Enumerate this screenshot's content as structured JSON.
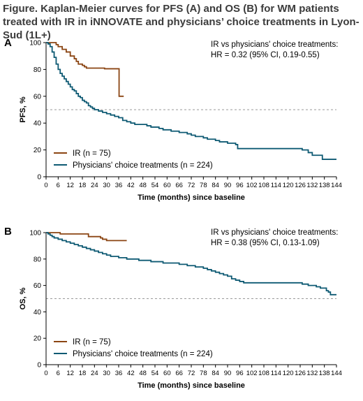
{
  "figure": {
    "title": "Figure. Kaplan-Meier curves for PFS (A) and OS (B) for WM patients treated with IR in iNNOVATE and physicians’ choice treatments in Lyon-Sud (1L+)"
  },
  "colors": {
    "ir": "#8b4513",
    "pc": "#0e5a73",
    "ref": "#999999",
    "axis": "#000000"
  },
  "chart_data": [
    {
      "panel_label": "A",
      "type": "line",
      "step": true,
      "xlabel": "Time (months) since baseline",
      "ylabel": "PFS, %",
      "xlim": [
        0,
        144
      ],
      "ylim": [
        0,
        100
      ],
      "xticks": [
        "0",
        "6",
        "12",
        "18",
        "24",
        "30",
        "36",
        "42",
        "48",
        "54",
        "60",
        "66",
        "72",
        "78",
        "84",
        "90",
        "96",
        "102",
        "108",
        "114",
        "120",
        "126",
        "132",
        "138",
        "144"
      ],
      "yticks": [
        "0",
        "20",
        "40",
        "60",
        "80",
        "100"
      ],
      "reference_line": 50,
      "annotation": [
        "IR vs physicians' choice treatments:",
        "HR = 0.32 (95% CI, 0.19-0.55)"
      ],
      "legend_position": "bottom-left",
      "series": [
        {
          "name": "IR (n = 75)",
          "color_key": "ir",
          "points": [
            [
              0,
              100
            ],
            [
              4,
              100
            ],
            [
              5,
              98.5
            ],
            [
              6,
              97
            ],
            [
              8,
              95
            ],
            [
              10,
              93
            ],
            [
              12,
              90
            ],
            [
              14,
              88
            ],
            [
              15,
              86
            ],
            [
              16,
              84
            ],
            [
              18,
              83
            ],
            [
              19,
              82
            ],
            [
              20,
              81
            ],
            [
              26,
              81
            ],
            [
              29,
              80.5
            ],
            [
              36,
              80.5
            ],
            [
              36.2,
              60
            ],
            [
              38.5,
              60
            ]
          ]
        },
        {
          "name": "Physicians' choice treatments (n = 224)",
          "color_key": "pc",
          "points": [
            [
              0,
              100
            ],
            [
              1,
              99
            ],
            [
              2,
              97
            ],
            [
              3,
              93
            ],
            [
              4,
              89
            ],
            [
              5,
              84
            ],
            [
              6,
              80
            ],
            [
              7,
              77
            ],
            [
              8,
              75
            ],
            [
              9,
              73
            ],
            [
              10,
              71
            ],
            [
              11,
              69
            ],
            [
              12,
              67
            ],
            [
              13,
              65
            ],
            [
              14,
              64
            ],
            [
              15,
              62
            ],
            [
              16,
              60
            ],
            [
              17,
              59
            ],
            [
              18,
              57
            ],
            [
              19,
              56
            ],
            [
              20,
              55
            ],
            [
              21,
              53
            ],
            [
              22,
              52
            ],
            [
              23,
              51
            ],
            [
              24,
              50
            ],
            [
              26,
              49
            ],
            [
              28,
              48
            ],
            [
              30,
              47
            ],
            [
              32,
              46
            ],
            [
              34,
              45
            ],
            [
              36,
              44
            ],
            [
              38,
              42
            ],
            [
              40,
              41
            ],
            [
              42,
              40
            ],
            [
              44,
              39
            ],
            [
              50,
              38
            ],
            [
              52,
              37
            ],
            [
              56,
              36
            ],
            [
              58,
              35
            ],
            [
              62,
              34
            ],
            [
              66,
              33
            ],
            [
              70,
              32
            ],
            [
              72,
              31
            ],
            [
              74,
              30
            ],
            [
              78,
              29
            ],
            [
              80,
              28
            ],
            [
              84,
              27
            ],
            [
              86,
              26
            ],
            [
              88,
              26
            ],
            [
              90,
              25
            ],
            [
              94,
              24
            ],
            [
              95,
              21
            ],
            [
              118,
              21
            ],
            [
              126,
              21
            ],
            [
              127,
              20
            ],
            [
              130,
              18
            ],
            [
              132,
              16
            ],
            [
              136,
              16
            ],
            [
              137,
              13
            ],
            [
              141,
              13
            ],
            [
              144,
              13
            ]
          ]
        }
      ]
    },
    {
      "panel_label": "B",
      "type": "line",
      "step": true,
      "xlabel": "Time (months) since baseline",
      "ylabel": "OS, %",
      "xlim": [
        0,
        144
      ],
      "ylim": [
        0,
        100
      ],
      "xticks": [
        "0",
        "6",
        "12",
        "18",
        "24",
        "30",
        "36",
        "42",
        "48",
        "54",
        "60",
        "66",
        "72",
        "78",
        "84",
        "90",
        "96",
        "102",
        "108",
        "114",
        "120",
        "126",
        "132",
        "138",
        "144"
      ],
      "yticks": [
        "0",
        "20",
        "40",
        "60",
        "80",
        "100"
      ],
      "reference_line": 50,
      "annotation": [
        "IR vs physicians' choice treatments:",
        "HR = 0.38 (95% CI, 0.13-1.09)"
      ],
      "legend_position": "bottom-left",
      "series": [
        {
          "name": "IR (n = 75)",
          "color_key": "ir",
          "points": [
            [
              0,
              100
            ],
            [
              6,
              100
            ],
            [
              7,
              99
            ],
            [
              20,
              99
            ],
            [
              21,
              97
            ],
            [
              26,
              97
            ],
            [
              27,
              96
            ],
            [
              28,
              95
            ],
            [
              30,
              94
            ],
            [
              40,
              94
            ]
          ]
        },
        {
          "name": "Physicians' choice treatments (n = 224)",
          "color_key": "pc",
          "points": [
            [
              0,
              100
            ],
            [
              1,
              99
            ],
            [
              2,
              98
            ],
            [
              3,
              97
            ],
            [
              4,
              96
            ],
            [
              6,
              95
            ],
            [
              8,
              94
            ],
            [
              10,
              93
            ],
            [
              12,
              92
            ],
            [
              14,
              91
            ],
            [
              16,
              90
            ],
            [
              18,
              89
            ],
            [
              20,
              88
            ],
            [
              22,
              87
            ],
            [
              24,
              86
            ],
            [
              26,
              85
            ],
            [
              28,
              84
            ],
            [
              30,
              83
            ],
            [
              32,
              82
            ],
            [
              36,
              81
            ],
            [
              40,
              80
            ],
            [
              46,
              79
            ],
            [
              52,
              78
            ],
            [
              58,
              77
            ],
            [
              66,
              76
            ],
            [
              70,
              75
            ],
            [
              74,
              74
            ],
            [
              78,
              73
            ],
            [
              80,
              72
            ],
            [
              82,
              71
            ],
            [
              84,
              70
            ],
            [
              86,
              69
            ],
            [
              88,
              68
            ],
            [
              90,
              67
            ],
            [
              92,
              65
            ],
            [
              94,
              64
            ],
            [
              96,
              63
            ],
            [
              98,
              62
            ],
            [
              126,
              62
            ],
            [
              127,
              61
            ],
            [
              130,
              60
            ],
            [
              134,
              59
            ],
            [
              136,
              58
            ],
            [
              138,
              58
            ],
            [
              139,
              56
            ],
            [
              140,
              55
            ],
            [
              141,
              53
            ],
            [
              144,
              53
            ]
          ]
        }
      ]
    }
  ]
}
